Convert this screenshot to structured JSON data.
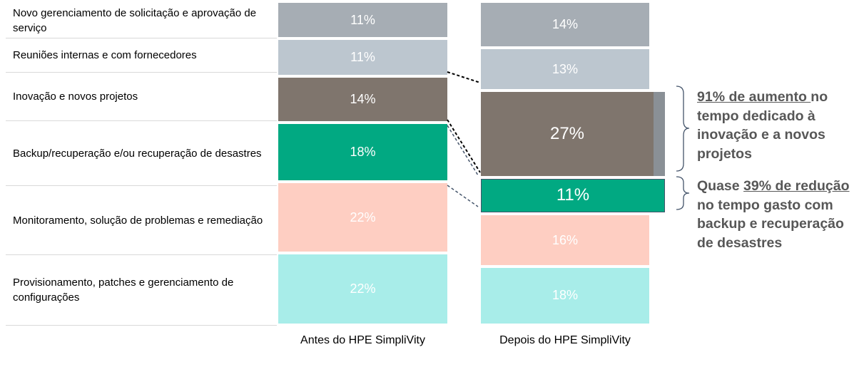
{
  "chart_data": {
    "type": "bar",
    "categories": [
      "Novo gerenciamento de solicitação e aprovação de serviço",
      "Reuniões internas e com fornecedores",
      "Inovação e novos projetos",
      "Backup/recuperação e/ou recuperação de desastres",
      "Monitoramento, solução de problemas e remediação",
      "Provisionamento, patches e gerenciamento de configurações"
    ],
    "series": [
      {
        "name": "Antes do HPE SimpliVity",
        "values": [
          11,
          11,
          14,
          18,
          22,
          22
        ]
      },
      {
        "name": "Depois do HPE SimpliVity",
        "values": [
          14,
          13,
          27,
          11,
          16,
          18
        ]
      }
    ],
    "value_suffix": "%",
    "colors": [
      "#a6adb4",
      "#bcc6cf",
      "#7f756d",
      "#01a982",
      "#fecec2",
      "#a8ede9"
    ],
    "highlight_color": "#8a9096"
  },
  "annotations": {
    "innovation": {
      "underlined": "91% de aumento ",
      "rest": "no tempo dedicado à inovação e a novos projetos"
    },
    "backup": {
      "lead": "Quase ",
      "underlined": "39% de redução ",
      "rest": "no tempo gasto com backup e recuperação de desastres"
    }
  }
}
